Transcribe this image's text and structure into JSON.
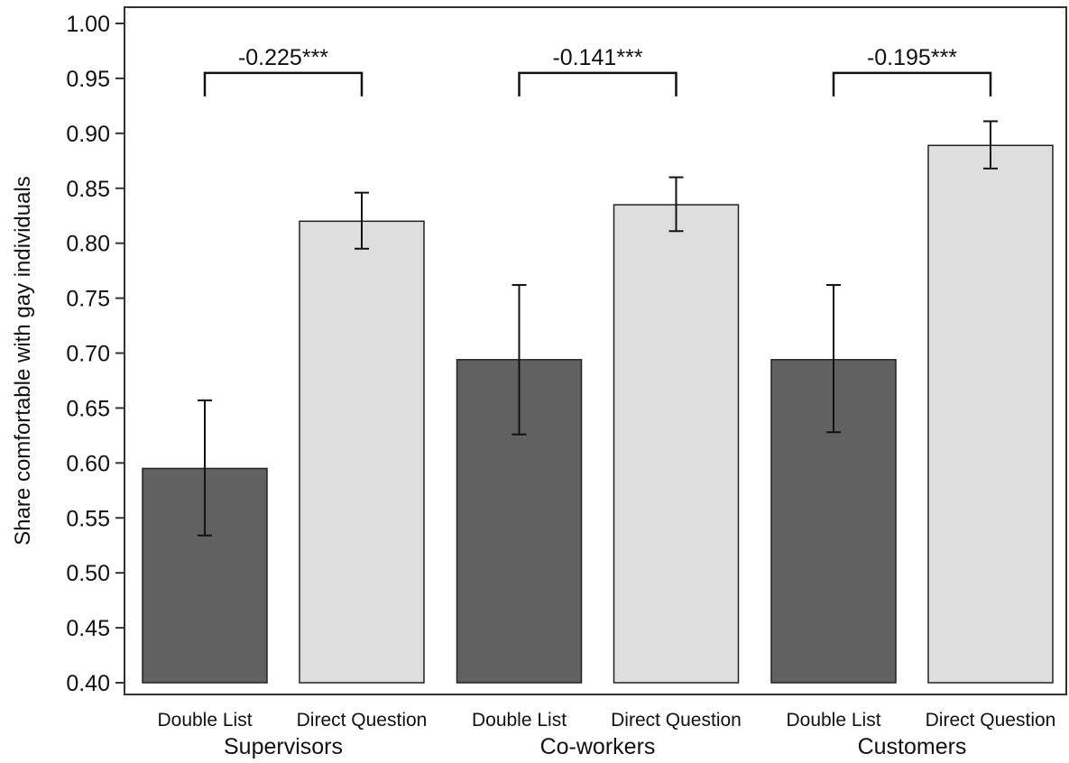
{
  "chart_data": {
    "type": "bar",
    "title": "",
    "xlabel": "",
    "ylabel": "Share comfortable with gay individuals",
    "ylim": [
      0.4,
      1.0
    ],
    "yticks": [
      0.4,
      0.45,
      0.5,
      0.55,
      0.6,
      0.65,
      0.7,
      0.75,
      0.8,
      0.85,
      0.9,
      0.95,
      1.0
    ],
    "ytick_labels": [
      "0.40",
      "0.45",
      "0.50",
      "0.55",
      "0.60",
      "0.65",
      "0.70",
      "0.75",
      "0.80",
      "0.85",
      "0.90",
      "0.95",
      "1.00"
    ],
    "grid": false,
    "legend": "none",
    "colors": {
      "Double List": "#616161",
      "Direct Question": "#dedede",
      "outline": "#222222"
    },
    "groups": [
      {
        "name": "Supervisors",
        "difference_label": "-0.225***",
        "bars": [
          {
            "label": "Double List",
            "value": 0.595,
            "ci_low": 0.534,
            "ci_high": 0.657
          },
          {
            "label": "Direct Question",
            "value": 0.82,
            "ci_low": 0.795,
            "ci_high": 0.846
          }
        ]
      },
      {
        "name": "Co-workers",
        "difference_label": "-0.141***",
        "bars": [
          {
            "label": "Double List",
            "value": 0.694,
            "ci_low": 0.626,
            "ci_high": 0.762
          },
          {
            "label": "Direct Question",
            "value": 0.835,
            "ci_low": 0.811,
            "ci_high": 0.86
          }
        ]
      },
      {
        "name": "Customers",
        "difference_label": "-0.195***",
        "bars": [
          {
            "label": "Double List",
            "value": 0.694,
            "ci_low": 0.628,
            "ci_high": 0.762
          },
          {
            "label": "Direct Question",
            "value": 0.889,
            "ci_low": 0.868,
            "ci_high": 0.911
          }
        ]
      }
    ],
    "bracket_value": 0.955
  }
}
